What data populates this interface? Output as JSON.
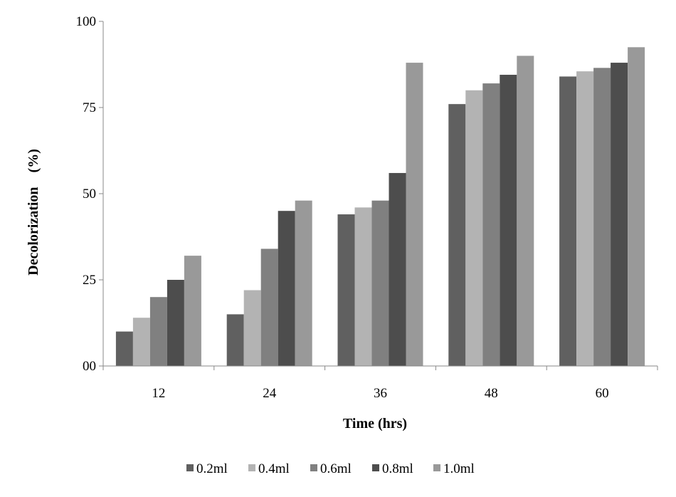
{
  "chart_data": {
    "type": "bar",
    "title": "",
    "xlabel": "Time (hrs)",
    "ylabel": "Decolorization    (%)",
    "categories": [
      "12",
      "24",
      "36",
      "48",
      "60"
    ],
    "ylim": [
      0,
      100
    ],
    "yticks": [
      0,
      25,
      50,
      75,
      100
    ],
    "ytick_labels": [
      "00",
      "25",
      "50",
      "75",
      "100"
    ],
    "grid": false,
    "legend_position": "bottom",
    "series": [
      {
        "name": "0.2ml",
        "color": "#606060",
        "values": [
          10,
          15,
          44,
          76,
          84
        ]
      },
      {
        "name": "0.4ml",
        "color": "#b3b3b3",
        "values": [
          14,
          22,
          46,
          80,
          85.5
        ]
      },
      {
        "name": "0.6ml",
        "color": "#808080",
        "values": [
          20,
          34,
          48,
          82,
          86.5
        ]
      },
      {
        "name": "0.8ml",
        "color": "#4d4d4d",
        "values": [
          25,
          45,
          56,
          84.5,
          88
        ]
      },
      {
        "name": "1.0ml",
        "color": "#999999",
        "values": [
          32,
          48,
          88,
          90,
          92.5
        ]
      }
    ]
  }
}
